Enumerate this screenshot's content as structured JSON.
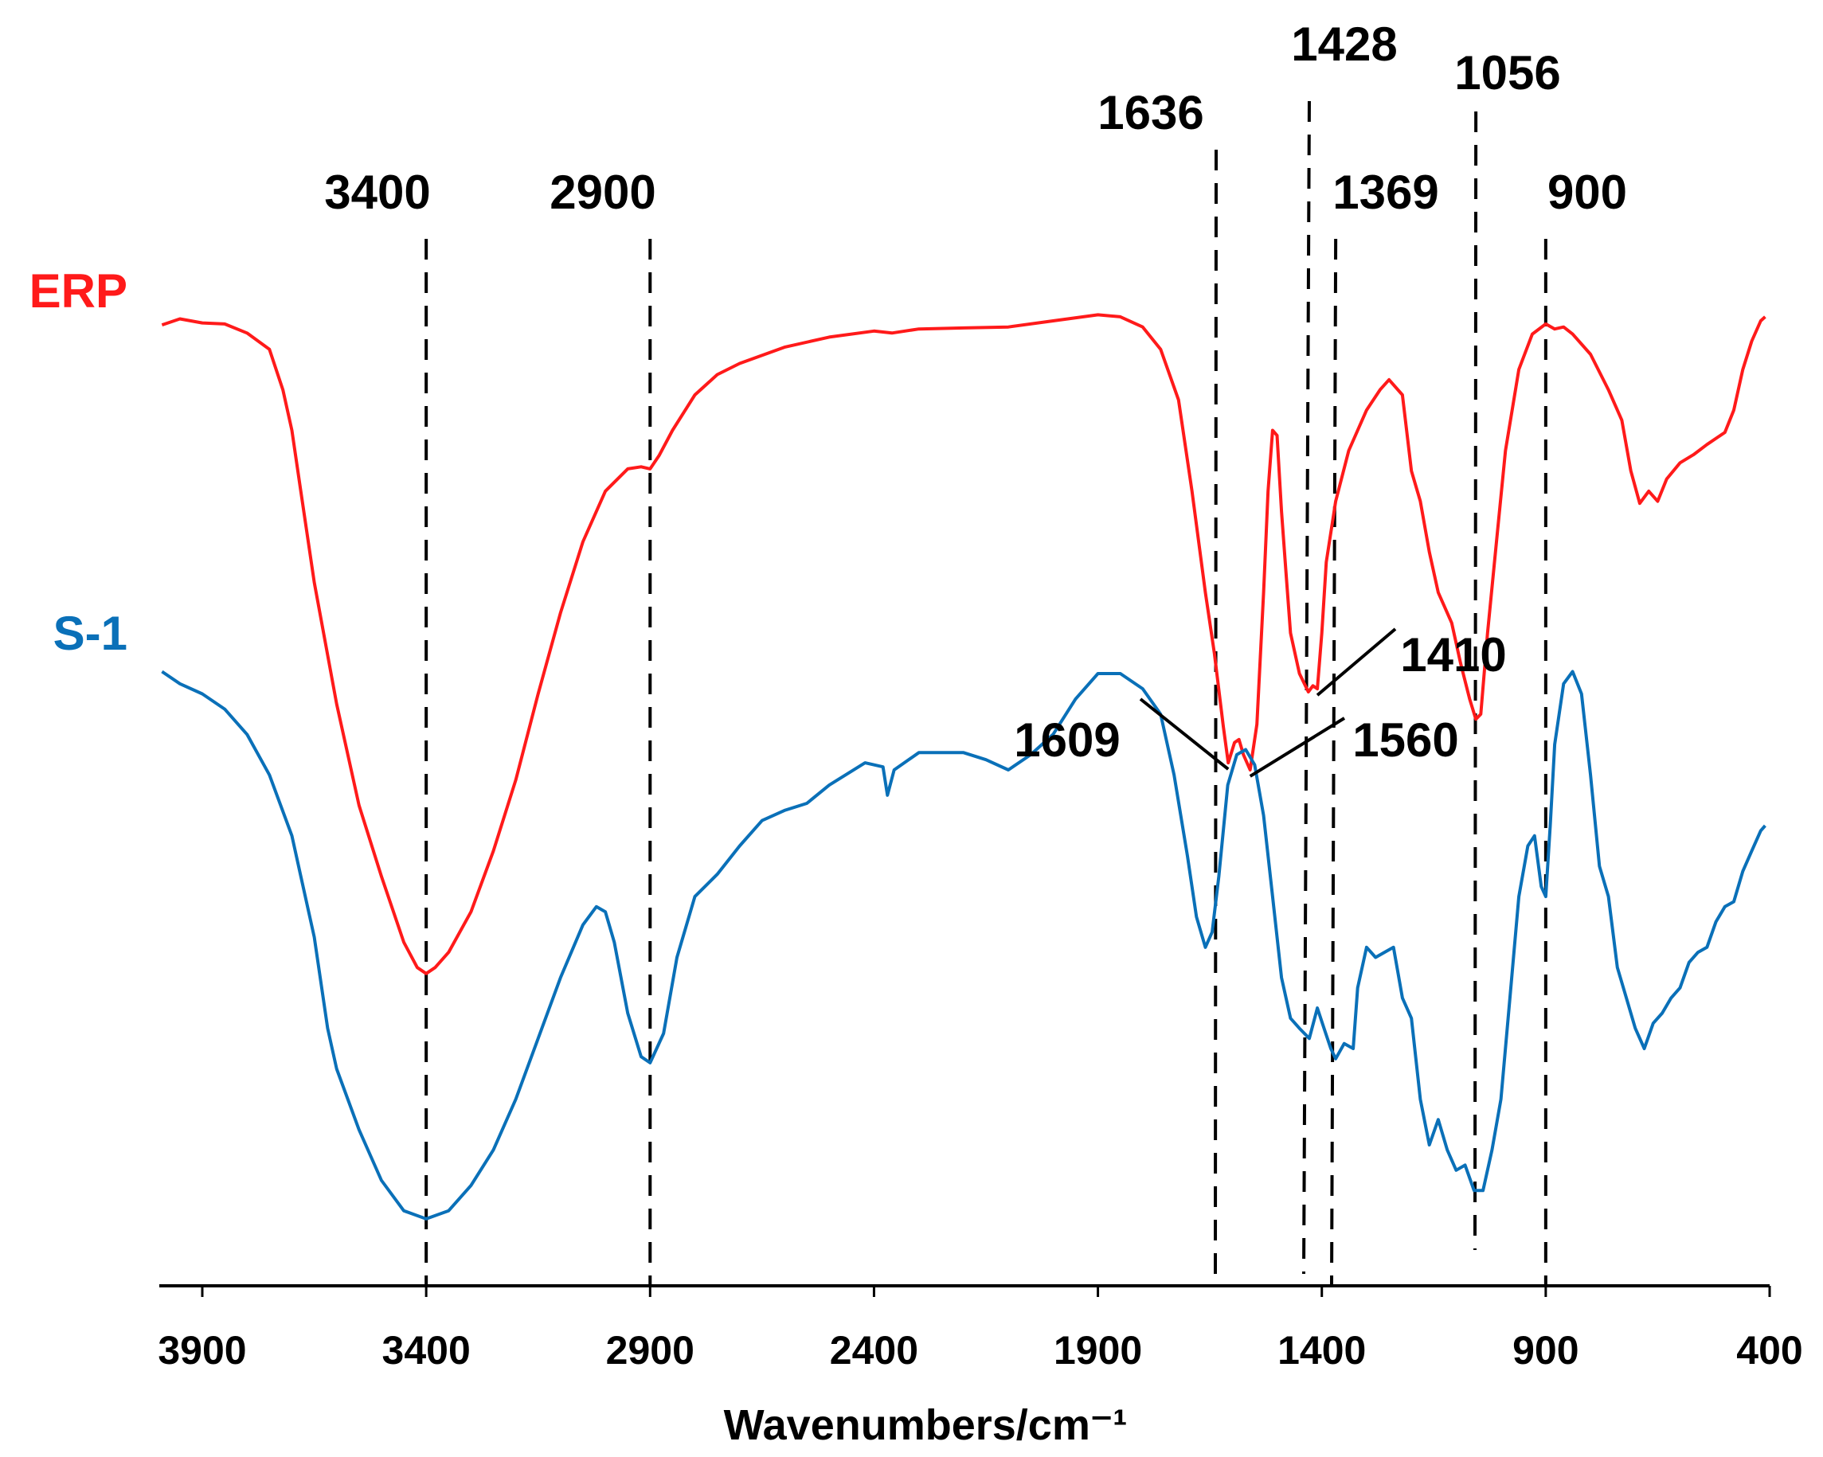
{
  "chart_data": {
    "type": "line",
    "title": "",
    "xlabel": "Wavenumbers/cm⁻¹",
    "ylabel": "",
    "xlim": [
      4000,
      400
    ],
    "x_reversed": true,
    "y_axis_shown": false,
    "grid": false,
    "xticks": [
      3900,
      3400,
      2900,
      2400,
      1900,
      1400,
      900,
      400
    ],
    "series": [
      {
        "name": "ERP",
        "color": "#ff1a1a",
        "points": [
          [
            3990,
            0.864
          ],
          [
            3950,
            0.87
          ],
          [
            3900,
            0.866
          ],
          [
            3850,
            0.865
          ],
          [
            3800,
            0.856
          ],
          [
            3750,
            0.84
          ],
          [
            3720,
            0.8
          ],
          [
            3700,
            0.76
          ],
          [
            3680,
            0.7
          ],
          [
            3650,
            0.61
          ],
          [
            3600,
            0.49
          ],
          [
            3550,
            0.39
          ],
          [
            3500,
            0.32
          ],
          [
            3450,
            0.255
          ],
          [
            3420,
            0.23
          ],
          [
            3400,
            0.224
          ],
          [
            3380,
            0.23
          ],
          [
            3350,
            0.245
          ],
          [
            3300,
            0.285
          ],
          [
            3250,
            0.345
          ],
          [
            3200,
            0.415
          ],
          [
            3150,
            0.5
          ],
          [
            3100,
            0.58
          ],
          [
            3050,
            0.65
          ],
          [
            3000,
            0.7
          ],
          [
            2950,
            0.722
          ],
          [
            2920,
            0.724
          ],
          [
            2900,
            0.722
          ],
          [
            2880,
            0.735
          ],
          [
            2850,
            0.76
          ],
          [
            2800,
            0.795
          ],
          [
            2750,
            0.815
          ],
          [
            2700,
            0.826
          ],
          [
            2600,
            0.842
          ],
          [
            2500,
            0.852
          ],
          [
            2400,
            0.858
          ],
          [
            2360,
            0.856
          ],
          [
            2300,
            0.86
          ],
          [
            2200,
            0.861
          ],
          [
            2100,
            0.862
          ],
          [
            2000,
            0.868
          ],
          [
            1900,
            0.874
          ],
          [
            1850,
            0.872
          ],
          [
            1800,
            0.862
          ],
          [
            1760,
            0.84
          ],
          [
            1720,
            0.79
          ],
          [
            1690,
            0.7
          ],
          [
            1660,
            0.6
          ],
          [
            1640,
            0.54
          ],
          [
            1620,
            0.468
          ],
          [
            1609,
            0.432
          ],
          [
            1595,
            0.452
          ],
          [
            1585,
            0.455
          ],
          [
            1575,
            0.44
          ],
          [
            1560,
            0.425
          ],
          [
            1545,
            0.47
          ],
          [
            1530,
            0.6
          ],
          [
            1520,
            0.7
          ],
          [
            1510,
            0.76
          ],
          [
            1500,
            0.755
          ],
          [
            1490,
            0.68
          ],
          [
            1480,
            0.62
          ],
          [
            1470,
            0.56
          ],
          [
            1450,
            0.52
          ],
          [
            1430,
            0.502
          ],
          [
            1420,
            0.508
          ],
          [
            1410,
            0.505
          ],
          [
            1400,
            0.56
          ],
          [
            1390,
            0.63
          ],
          [
            1369,
            0.69
          ],
          [
            1340,
            0.74
          ],
          [
            1300,
            0.78
          ],
          [
            1270,
            0.8
          ],
          [
            1250,
            0.81
          ],
          [
            1220,
            0.795
          ],
          [
            1200,
            0.72
          ],
          [
            1180,
            0.69
          ],
          [
            1160,
            0.64
          ],
          [
            1140,
            0.6
          ],
          [
            1110,
            0.57
          ],
          [
            1090,
            0.53
          ],
          [
            1070,
            0.495
          ],
          [
            1056,
            0.475
          ],
          [
            1045,
            0.48
          ],
          [
            1030,
            0.56
          ],
          [
            1010,
            0.65
          ],
          [
            990,
            0.74
          ],
          [
            960,
            0.82
          ],
          [
            930,
            0.855
          ],
          [
            900,
            0.865
          ],
          [
            880,
            0.86
          ],
          [
            860,
            0.862
          ],
          [
            840,
            0.855
          ],
          [
            800,
            0.835
          ],
          [
            760,
            0.8
          ],
          [
            730,
            0.77
          ],
          [
            710,
            0.72
          ],
          [
            690,
            0.688
          ],
          [
            670,
            0.7
          ],
          [
            650,
            0.69
          ],
          [
            630,
            0.712
          ],
          [
            600,
            0.728
          ],
          [
            570,
            0.736
          ],
          [
            540,
            0.746
          ],
          [
            500,
            0.758
          ],
          [
            480,
            0.78
          ],
          [
            460,
            0.82
          ],
          [
            440,
            0.848
          ],
          [
            420,
            0.868
          ],
          [
            410,
            0.872
          ]
        ]
      },
      {
        "name": "S-1",
        "color": "#0a70b8",
        "points": [
          [
            3990,
            0.522
          ],
          [
            3950,
            0.51
          ],
          [
            3900,
            0.5
          ],
          [
            3850,
            0.485
          ],
          [
            3800,
            0.46
          ],
          [
            3750,
            0.42
          ],
          [
            3700,
            0.36
          ],
          [
            3680,
            0.32
          ],
          [
            3650,
            0.26
          ],
          [
            3620,
            0.17
          ],
          [
            3600,
            0.13
          ],
          [
            3550,
            0.07
          ],
          [
            3500,
            0.02
          ],
          [
            3450,
            -0.01
          ],
          [
            3400,
            -0.018
          ],
          [
            3350,
            -0.01
          ],
          [
            3300,
            0.015
          ],
          [
            3250,
            0.05
          ],
          [
            3200,
            0.1
          ],
          [
            3150,
            0.16
          ],
          [
            3100,
            0.22
          ],
          [
            3050,
            0.272
          ],
          [
            3020,
            0.29
          ],
          [
            3000,
            0.285
          ],
          [
            2980,
            0.255
          ],
          [
            2950,
            0.185
          ],
          [
            2920,
            0.142
          ],
          [
            2900,
            0.136
          ],
          [
            2870,
            0.165
          ],
          [
            2840,
            0.24
          ],
          [
            2800,
            0.3
          ],
          [
            2750,
            0.322
          ],
          [
            2700,
            0.35
          ],
          [
            2650,
            0.375
          ],
          [
            2600,
            0.385
          ],
          [
            2550,
            0.392
          ],
          [
            2500,
            0.41
          ],
          [
            2420,
            0.432
          ],
          [
            2380,
            0.428
          ],
          [
            2370,
            0.4
          ],
          [
            2355,
            0.425
          ],
          [
            2300,
            0.442
          ],
          [
            2200,
            0.442
          ],
          [
            2150,
            0.435
          ],
          [
            2100,
            0.425
          ],
          [
            2050,
            0.44
          ],
          [
            2000,
            0.46
          ],
          [
            1950,
            0.495
          ],
          [
            1900,
            0.52
          ],
          [
            1850,
            0.52
          ],
          [
            1800,
            0.505
          ],
          [
            1760,
            0.48
          ],
          [
            1730,
            0.42
          ],
          [
            1700,
            0.34
          ],
          [
            1680,
            0.28
          ],
          [
            1660,
            0.25
          ],
          [
            1645,
            0.265
          ],
          [
            1630,
            0.32
          ],
          [
            1610,
            0.41
          ],
          [
            1590,
            0.44
          ],
          [
            1570,
            0.445
          ],
          [
            1550,
            0.43
          ],
          [
            1530,
            0.38
          ],
          [
            1510,
            0.3
          ],
          [
            1490,
            0.22
          ],
          [
            1470,
            0.18
          ],
          [
            1450,
            0.17
          ],
          [
            1428,
            0.16
          ],
          [
            1410,
            0.19
          ],
          [
            1395,
            0.17
          ],
          [
            1380,
            0.15
          ],
          [
            1369,
            0.14
          ],
          [
            1350,
            0.155
          ],
          [
            1330,
            0.15
          ],
          [
            1320,
            0.21
          ],
          [
            1300,
            0.25
          ],
          [
            1280,
            0.24
          ],
          [
            1260,
            0.245
          ],
          [
            1240,
            0.25
          ],
          [
            1220,
            0.2
          ],
          [
            1200,
            0.18
          ],
          [
            1180,
            0.1
          ],
          [
            1160,
            0.055
          ],
          [
            1140,
            0.08
          ],
          [
            1120,
            0.05
          ],
          [
            1100,
            0.03
          ],
          [
            1080,
            0.035
          ],
          [
            1060,
            0.01
          ],
          [
            1040,
            0.01
          ],
          [
            1020,
            0.05
          ],
          [
            1000,
            0.1
          ],
          [
            980,
            0.2
          ],
          [
            960,
            0.3
          ],
          [
            940,
            0.35
          ],
          [
            925,
            0.36
          ],
          [
            910,
            0.31
          ],
          [
            900,
            0.3
          ],
          [
            890,
            0.37
          ],
          [
            880,
            0.45
          ],
          [
            860,
            0.51
          ],
          [
            840,
            0.522
          ],
          [
            820,
            0.5
          ],
          [
            800,
            0.42
          ],
          [
            780,
            0.33
          ],
          [
            760,
            0.3
          ],
          [
            740,
            0.23
          ],
          [
            720,
            0.2
          ],
          [
            700,
            0.17
          ],
          [
            680,
            0.15
          ],
          [
            660,
            0.175
          ],
          [
            640,
            0.185
          ],
          [
            620,
            0.2
          ],
          [
            600,
            0.21
          ],
          [
            580,
            0.235
          ],
          [
            560,
            0.245
          ],
          [
            540,
            0.25
          ],
          [
            520,
            0.275
          ],
          [
            500,
            0.29
          ],
          [
            480,
            0.295
          ],
          [
            460,
            0.325
          ],
          [
            440,
            0.345
          ],
          [
            420,
            0.365
          ],
          [
            410,
            0.37
          ]
        ]
      }
    ],
    "reference_lines": [
      {
        "x": 3400,
        "label": "3400"
      },
      {
        "x": 2900,
        "label": "2900"
      },
      {
        "x": 1636,
        "label": "1636"
      },
      {
        "x": 1428,
        "label": "1428"
      },
      {
        "x": 1369,
        "label": "1369"
      },
      {
        "x": 1056,
        "label": "1056"
      },
      {
        "x": 900,
        "label": "900"
      }
    ],
    "annotations": [
      {
        "label": "1609",
        "x": 1609
      },
      {
        "label": "1560",
        "x": 1560
      },
      {
        "label": "1410",
        "x": 1410
      }
    ]
  }
}
